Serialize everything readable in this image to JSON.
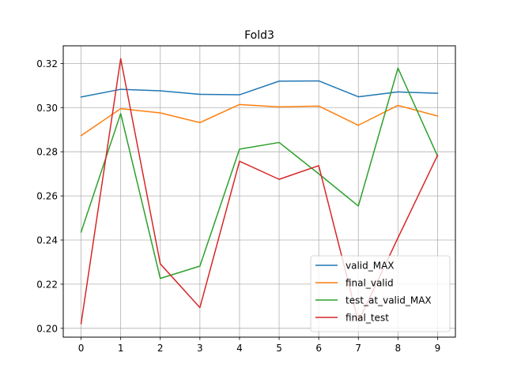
{
  "chart_data": {
    "type": "line",
    "title": "Fold3",
    "xlabel": "",
    "ylabel": "",
    "x": [
      0,
      1,
      2,
      3,
      4,
      5,
      6,
      7,
      8,
      9
    ],
    "xlim": [
      -0.45,
      9.45
    ],
    "ylim": [
      0.196,
      0.328
    ],
    "xticks": [
      0,
      1,
      2,
      3,
      4,
      5,
      6,
      7,
      8,
      9
    ],
    "yticks": [
      0.2,
      0.22,
      0.24,
      0.26,
      0.28,
      0.3,
      0.32
    ],
    "ytick_labels": [
      "0.20",
      "0.22",
      "0.24",
      "0.26",
      "0.28",
      "0.30",
      "0.32"
    ],
    "grid": true,
    "legend_position": "lower right",
    "series": [
      {
        "name": "valid_MAX",
        "color": "#1f77b4",
        "values": [
          0.3048,
          0.3083,
          0.3076,
          0.306,
          0.3058,
          0.312,
          0.3121,
          0.3049,
          0.3071,
          0.3065
        ]
      },
      {
        "name": "final_valid",
        "color": "#ff7f0e",
        "values": [
          0.2873,
          0.2995,
          0.2976,
          0.2932,
          0.3014,
          0.3003,
          0.3007,
          0.292,
          0.301,
          0.2962
        ]
      },
      {
        "name": "test_at_valid_MAX",
        "color": "#2ca02c",
        "values": [
          0.2436,
          0.2973,
          0.2226,
          0.2282,
          0.2812,
          0.2842,
          0.27,
          0.2554,
          0.3179,
          0.278
        ]
      },
      {
        "name": "final_test",
        "color": "#d62728",
        "values": [
          0.2021,
          0.3222,
          0.2292,
          0.2094,
          0.2757,
          0.2675,
          0.2737,
          0.203,
          0.241,
          0.2784
        ]
      }
    ]
  }
}
